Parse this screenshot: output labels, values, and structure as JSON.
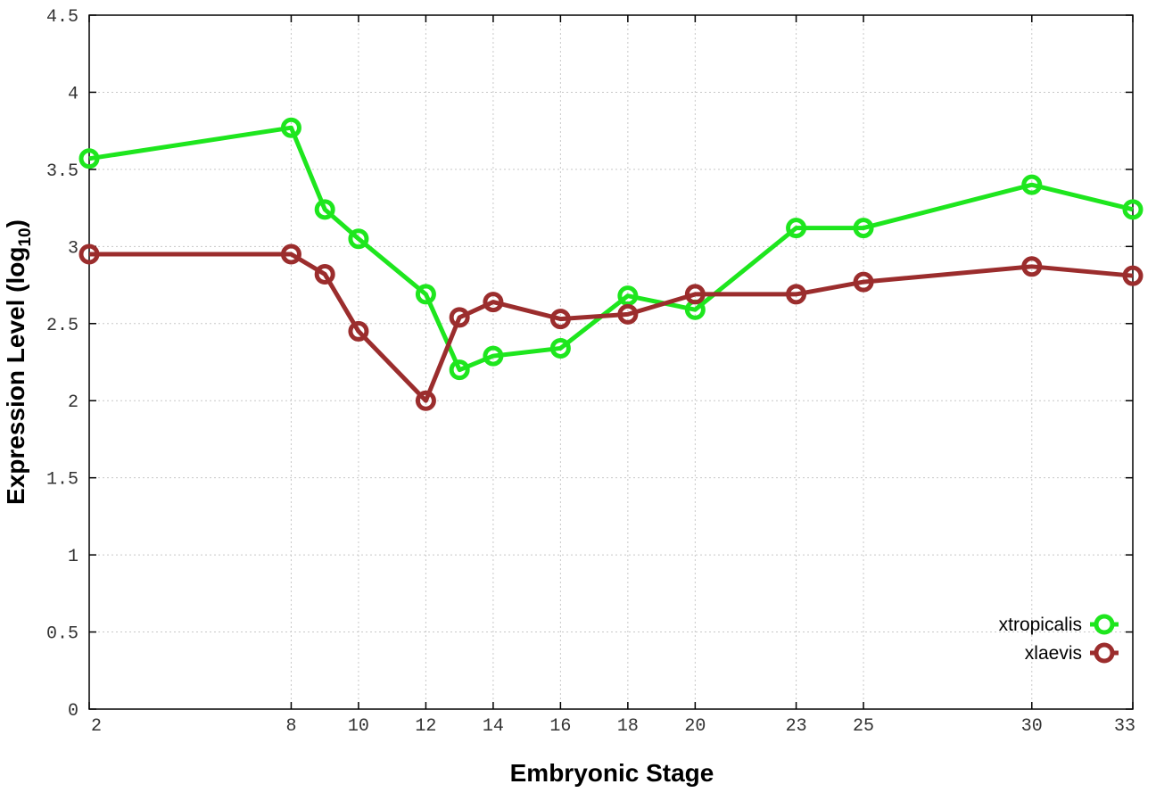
{
  "chart_data": {
    "type": "line",
    "xlabel": "Embryonic Stage",
    "ylabel": "Expression Level (log",
    "ylabel_subscript": "10",
    "ylabel_close": ")",
    "x_categories": [
      "2",
      "8",
      "10",
      "12",
      "14",
      "16",
      "18",
      "20",
      "23",
      "25",
      "30",
      "33"
    ],
    "y_ticks": [
      "0",
      "0.5",
      "1",
      "1.5",
      "2",
      "2.5",
      "3",
      "3.5",
      "4",
      "4.5"
    ],
    "ylim": [
      0,
      4.5
    ],
    "xlim": [
      2,
      33
    ],
    "grid": true,
    "legend_position": "bottom-right",
    "series": [
      {
        "name": "xtropicalis",
        "color": "#1ee61e",
        "x": [
          2,
          8,
          9,
          10,
          12,
          13,
          14,
          16,
          18,
          20,
          23,
          25,
          30,
          33
        ],
        "y": [
          3.57,
          3.77,
          3.24,
          3.05,
          2.69,
          2.2,
          2.29,
          2.34,
          2.68,
          2.59,
          3.12,
          3.12,
          3.4,
          3.24
        ]
      },
      {
        "name": "xlaevis",
        "color": "#9b2d2d",
        "x": [
          2,
          8,
          9,
          10,
          12,
          13,
          14,
          16,
          18,
          20,
          23,
          25,
          30,
          33
        ],
        "y": [
          2.95,
          2.95,
          2.82,
          2.45,
          2.0,
          2.54,
          2.64,
          2.53,
          2.56,
          2.69,
          2.69,
          2.77,
          2.87,
          2.81
        ]
      }
    ]
  }
}
